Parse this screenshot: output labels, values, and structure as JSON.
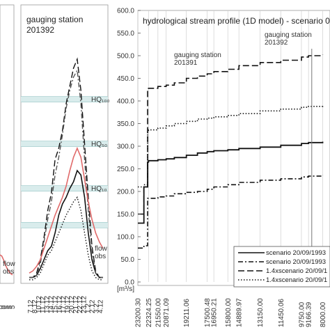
{
  "colors": {
    "accent_red": "#e06a6a",
    "band": "#d9ecec",
    "band_line": "#a8cfcf",
    "ink": "#111111"
  },
  "chart_data": [
    {
      "type": "line",
      "title": "",
      "x_ticks": [
        "0",
        "0",
        "5",
        "5",
        "5"
      ],
      "labels": {
        "flow_obs": "flow\nobs"
      },
      "series": [
        {
          "color": "#e06a6a",
          "values": [
            120,
            118,
            112,
            104,
            98,
            93,
            90,
            88
          ]
        }
      ]
    },
    {
      "type": "line",
      "title": "gauging station\n201392",
      "x_ticks": [
        "7.12",
        "8.12",
        "10.12",
        "11.12",
        "13.12",
        "14.12",
        "15.12",
        "16.12",
        "17.12",
        "19.12",
        "20.12",
        "21.12",
        "22.12",
        "23.12",
        "1.2",
        "2.12",
        "3.2",
        "4.12"
      ],
      "hq_labels": [
        "HQ₁₀₀",
        "HQ₅₀",
        "HQ₁₀"
      ],
      "hq_bands": [
        {
          "label": "HQ₁₀₀",
          "level": 0.82
        },
        {
          "label": "HQ₅₀",
          "level": 0.62
        },
        {
          "label": "HQ₁₀",
          "level": 0.42
        },
        {
          "label": "",
          "level": 0.255
        }
      ],
      "annotations": {
        "flow_obs": "flow\nobs"
      },
      "series": [
        {
          "style": "solid",
          "color": "#111111",
          "values": [
            0.02,
            0.02,
            0.03,
            0.06,
            0.1,
            0.14,
            0.16,
            0.22,
            0.3,
            0.35,
            0.38,
            0.42,
            0.45,
            0.5,
            0.48,
            0.38,
            0.22,
            0.1,
            0.04,
            0.02,
            0.02
          ]
        },
        {
          "style": "dashed",
          "color": "#111111",
          "values": [
            0.02,
            0.02,
            0.04,
            0.1,
            0.2,
            0.32,
            0.4,
            0.55,
            0.6,
            0.68,
            0.8,
            0.88,
            0.96,
            1.0,
            0.86,
            0.62,
            0.38,
            0.16,
            0.05,
            0.02,
            0.02
          ]
        },
        {
          "style": "dashdot",
          "color": "#555555",
          "values": [
            0.02,
            0.02,
            0.03,
            0.08,
            0.18,
            0.28,
            0.36,
            0.48,
            0.56,
            0.66,
            0.78,
            0.86,
            0.92,
            0.95,
            0.8,
            0.55,
            0.32,
            0.14,
            0.04,
            0.02,
            0.02
          ]
        },
        {
          "style": "dotted",
          "color": "#111111",
          "values": [
            0.01,
            0.01,
            0.02,
            0.04,
            0.08,
            0.12,
            0.14,
            0.18,
            0.22,
            0.26,
            0.3,
            0.33,
            0.36,
            0.38,
            0.32,
            0.22,
            0.12,
            0.05,
            0.02,
            0.01,
            0.01
          ]
        },
        {
          "style": "solid",
          "color": "#e06a6a",
          "values": [
            0.04,
            0.05,
            0.07,
            0.1,
            0.15,
            0.2,
            0.25,
            0.3,
            0.34,
            0.38,
            0.43,
            0.5,
            0.56,
            0.6,
            0.56,
            0.46,
            0.36,
            0.28,
            0.22,
            0.18,
            0.15
          ]
        }
      ]
    },
    {
      "type": "line",
      "title": "hydrological stream profile (1D model) - scenario 0",
      "ylabel": "[m³/s]",
      "ylim": [
        0,
        600
      ],
      "y_ticks": [
        "0.0",
        "50.0",
        "100.0",
        "150.0",
        "200.0",
        "250.0",
        "300.0",
        "350.0",
        "400.0",
        "450.0",
        "500.0",
        "550.0",
        "600.0"
      ],
      "x_ticks": [
        "23200.30",
        "22324.25",
        "21550.00",
        "20871.09",
        "19211.06",
        "17500.48",
        "16950.21",
        "15800.00",
        "14889.97",
        "13150.00",
        "11450.06",
        "9750.00",
        "9166.39",
        "8000.00"
      ],
      "stations": [
        {
          "label": "gauging station\n201391",
          "km": 22700
        },
        {
          "label": "gauging station\n201392",
          "km": 8900
        }
      ],
      "legend": [
        "scenario 20/09/1993",
        "scenario 20/09/1993",
        "1.4xscenario 20/09/1",
        "1.4xscenario 20/09/1"
      ],
      "x": [
        23200.3,
        22700,
        22400,
        22324.25,
        21550,
        20871.09,
        20200,
        19211.06,
        18300,
        17500.48,
        16950.21,
        15800,
        14889.97,
        13150,
        11450.06,
        9750,
        9166.39,
        8000
      ],
      "series": [
        {
          "style": "solid",
          "values": [
            130,
            210,
            265,
            268,
            270,
            272,
            275,
            280,
            285,
            288,
            290,
            292,
            295,
            298,
            302,
            306,
            308,
            310
          ]
        },
        {
          "style": "dashdot",
          "values": [
            75,
            80,
            185,
            185,
            188,
            190,
            195,
            198,
            200,
            205,
            210,
            215,
            220,
            225,
            228,
            232,
            234,
            236
          ]
        },
        {
          "style": "dashed",
          "values": [
            150,
            210,
            425,
            428,
            432,
            435,
            440,
            450,
            455,
            460,
            465,
            470,
            478,
            485,
            490,
            497,
            500,
            502
          ]
        },
        {
          "style": "dotted",
          "values": [
            210,
            215,
            335,
            336,
            340,
            345,
            350,
            355,
            360,
            362,
            365,
            368,
            372,
            378,
            382,
            386,
            388,
            392
          ]
        }
      ]
    }
  ]
}
